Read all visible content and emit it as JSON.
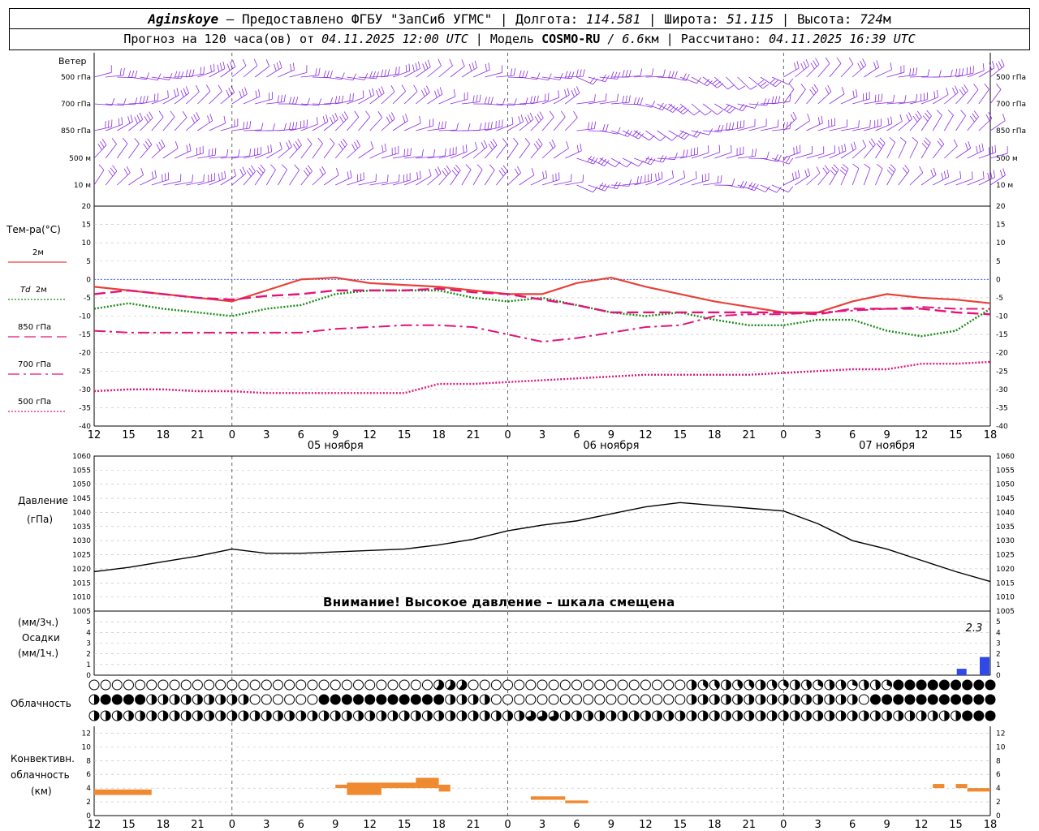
{
  "header": {
    "station": "Aginskoye",
    "provider": "– Предоставлено ФГБУ \"ЗапСиб УГМС\"",
    "lon_label": "Долгота:",
    "lon": "114.581",
    "lat_label": "Широта:",
    "lat": "51.115",
    "alt_label": "Высота:",
    "alt": "724",
    "alt_unit": "м",
    "forecast_label": "Прогноз на 120 часа(ов) от",
    "forecast_from": "04.11.2025 12:00 UTC",
    "model_label": "Модель",
    "model": "COSMO-RU",
    "resolution": "/ 6.6",
    "res_unit": "км",
    "calc_label": "Рассчитано:",
    "calc_time": "04.11.2025 16:39 UTC"
  },
  "wind_panel": {
    "title": "Ветер",
    "levels": [
      "500 гПа",
      "700 гПа",
      "850 гПа",
      "500 м",
      "10 м"
    ],
    "color": "#8a2be2"
  },
  "temp_panel": {
    "title": "Тем-ра(°С)",
    "legend": [
      {
        "label": "2м",
        "color": "#e8413a",
        "style": "solid"
      },
      {
        "label_a": "Td",
        "label": "2м",
        "color": "#1a8a1a",
        "style": "dotted"
      },
      {
        "label": "850 гПа",
        "color": "#e0157a",
        "style": "dashed"
      },
      {
        "label": "700 гПа",
        "color": "#e0157a",
        "style": "dashdot"
      },
      {
        "label": "500 гПа",
        "color": "#e0157a",
        "style": "dotted"
      }
    ],
    "yticks": [
      20,
      15,
      10,
      5,
      0,
      -5,
      -10,
      -15,
      -20,
      -25,
      -30,
      -35,
      -40
    ]
  },
  "time_axis": {
    "hours": [
      "12",
      "15",
      "18",
      "21",
      "0",
      "3",
      "6",
      "9",
      "12",
      "15",
      "18",
      "21",
      "0",
      "3",
      "6",
      "9",
      "12",
      "15",
      "18",
      "21",
      "0",
      "3",
      "6",
      "9",
      "12",
      "15",
      "18"
    ],
    "dates": [
      "05 ноября",
      "06 ноября",
      "07 ноября"
    ]
  },
  "pressure_panel": {
    "title": "Давление",
    "unit": "(гПа)",
    "yticks": [
      1060,
      1055,
      1050,
      1045,
      1040,
      1035,
      1030,
      1025,
      1020,
      1015,
      1010,
      1005
    ],
    "warning": "Внимание! Высокое давление – шкала смещена"
  },
  "precip_panel": {
    "unit3": "(мм/3ч.)",
    "title": "Осадки",
    "unit1": "(мм/1ч.)",
    "yticks": [
      5,
      4,
      3,
      2,
      1,
      0
    ],
    "total_label": "2.3",
    "bar_color": "#3048e8"
  },
  "cloud_panel": {
    "title": "Облачность"
  },
  "conv_panel": {
    "title1": "Конвективн.",
    "title2": "облачность",
    "unit": "(км)",
    "yticks": [
      12,
      10,
      8,
      6,
      4,
      2,
      0
    ],
    "color": "#f08a30"
  },
  "chart_data": [
    {
      "type": "line",
      "title": "Тем-ра(°С)",
      "x_hours_from_start": [
        0,
        3,
        6,
        9,
        12,
        15,
        18,
        21,
        24,
        27,
        30,
        33,
        36,
        39,
        42,
        45,
        48,
        51,
        54,
        57,
        60,
        63,
        66,
        69,
        72,
        75,
        78
      ],
      "ylim": [
        -40,
        20
      ],
      "series": [
        {
          "name": "2м",
          "values": [
            -2,
            -3,
            -4,
            -5,
            -6,
            -3,
            0,
            0.5,
            -1,
            -1.5,
            -2,
            -3,
            -4,
            -4,
            -1,
            0.5,
            -2,
            -4,
            -6,
            -7.5,
            -9,
            -9,
            -6,
            -4,
            -5,
            -5.5,
            -6.5
          ]
        },
        {
          "name": "Td 2м",
          "values": [
            -8,
            -6.5,
            -8,
            -9,
            -10,
            -8,
            -7,
            -4,
            -3,
            -3,
            -3,
            -5,
            -6,
            -5,
            -7,
            -9,
            -10,
            -9,
            -11,
            -12.5,
            -12.5,
            -11,
            -11,
            -14,
            -15.5,
            -14,
            -8
          ]
        },
        {
          "name": "850 гПа",
          "values": [
            -4,
            -3,
            -4,
            -5,
            -5.5,
            -4.5,
            -4,
            -3,
            -3,
            -3,
            -2.5,
            -3.5,
            -4,
            -5.5,
            -7,
            -9,
            -9,
            -9,
            -9,
            -9,
            -9,
            -9.5,
            -8,
            -8,
            -8,
            -9,
            -9.5
          ]
        },
        {
          "name": "700 гПа",
          "values": [
            -14,
            -14.5,
            -14.5,
            -14.5,
            -14.5,
            -14.5,
            -14.5,
            -13.5,
            -13,
            -12.5,
            -12.5,
            -13,
            -15,
            -17,
            -16,
            -14.5,
            -13,
            -12.5,
            -10,
            -9.5,
            -9.5,
            -9,
            -8.5,
            -8,
            -7.5,
            -8,
            -8
          ]
        },
        {
          "name": "500 гПа",
          "values": [
            -30.5,
            -30,
            -30,
            -30.5,
            -30.5,
            -31,
            -31,
            -31,
            -31,
            -31,
            -28.5,
            -28.5,
            -28,
            -27.5,
            -27,
            -26.5,
            -26,
            -26,
            -26,
            -26,
            -25.5,
            -25,
            -24.5,
            -24.5,
            -23,
            -23,
            -22.5
          ]
        }
      ]
    },
    {
      "type": "line",
      "title": "Давление",
      "x_hours_from_start": [
        0,
        3,
        6,
        9,
        12,
        15,
        18,
        21,
        24,
        27,
        30,
        33,
        36,
        39,
        42,
        45,
        48,
        51,
        54,
        57,
        60,
        63,
        66,
        69,
        72,
        75,
        78
      ],
      "ylim": [
        1005,
        1060
      ],
      "series": [
        {
          "name": "Давление",
          "values": [
            1019,
            1020.5,
            1022.5,
            1024.5,
            1027,
            1025.5,
            1025.5,
            1026,
            1026.5,
            1027,
            1028.5,
            1030.5,
            1033.5,
            1035.5,
            1037,
            1039.5,
            1042,
            1043.5,
            1042.5,
            1041.5,
            1040.5,
            1036,
            1030,
            1027,
            1023,
            1019,
            1015.5
          ]
        }
      ]
    },
    {
      "type": "bar",
      "title": "Осадки",
      "x_hours_from_start": [
        76,
        78
      ],
      "ylim": [
        0,
        5
      ],
      "values": [
        0.6,
        1.7
      ]
    },
    {
      "type": "bar",
      "title": "Конвективн. облачность",
      "ylim": [
        0,
        13
      ],
      "segments": [
        {
          "x0": 0,
          "x1": 5,
          "bottom": 3.0,
          "top": 3.8
        },
        {
          "x0": 21,
          "x1": 24,
          "bottom": 4.0,
          "top": 4.5
        },
        {
          "x0": 22,
          "x1": 25,
          "bottom": 3.0,
          "top": 4.8
        },
        {
          "x0": 25,
          "x1": 28,
          "bottom": 4.0,
          "top": 4.8
        },
        {
          "x0": 28,
          "x1": 30,
          "bottom": 4.0,
          "top": 5.5
        },
        {
          "x0": 30,
          "x1": 31,
          "bottom": 3.5,
          "top": 4.5
        },
        {
          "x0": 38,
          "x1": 41,
          "bottom": 2.3,
          "top": 2.8
        },
        {
          "x0": 41,
          "x1": 43,
          "bottom": 1.8,
          "top": 2.2
        },
        {
          "x0": 73,
          "x1": 74,
          "bottom": 4.0,
          "top": 4.6
        },
        {
          "x0": 75,
          "x1": 76,
          "bottom": 4.0,
          "top": 4.6
        },
        {
          "x0": 76,
          "x1": 78,
          "bottom": 3.5,
          "top": 4.0
        }
      ]
    }
  ]
}
